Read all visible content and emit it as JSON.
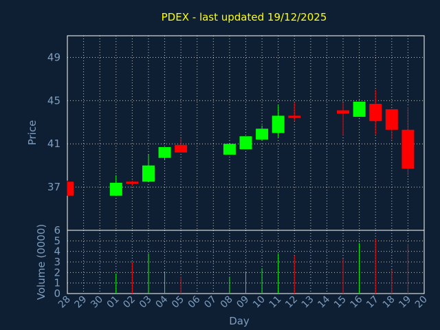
{
  "title": "PDEX - last updated 19/12/2025",
  "colors": {
    "background": "#0f1f33",
    "up": "#00ff00",
    "down": "#ff0000",
    "title": "#ffff00",
    "axis_text": "#7d9ec0",
    "grid": "#ffffff"
  },
  "chart_data": [
    {
      "type": "candlestick",
      "ylabel": "Price",
      "ylim": [
        33,
        51
      ],
      "yticks": [
        37,
        41,
        45,
        49
      ],
      "grid": true,
      "candles": [
        {
          "day": "28",
          "open": 37.5,
          "high": 37.6,
          "low": 36.2,
          "close": 36.2
        },
        {
          "day": "01",
          "open": 36.2,
          "high": 38.1,
          "low": 36.2,
          "close": 37.4
        },
        {
          "day": "02",
          "open": 37.5,
          "high": 37.6,
          "low": 37.1,
          "close": 37.4
        },
        {
          "day": "03",
          "open": 37.5,
          "high": 40.0,
          "low": 37.5,
          "close": 39.0
        },
        {
          "day": "04",
          "open": 39.7,
          "high": 40.7,
          "low": 39.5,
          "close": 40.7
        },
        {
          "day": "05",
          "open": 40.9,
          "high": 41.5,
          "low": 40.2,
          "close": 40.2
        },
        {
          "day": "08",
          "open": 40.0,
          "high": 41.0,
          "low": 40.0,
          "close": 41.0
        },
        {
          "day": "09",
          "open": 40.5,
          "high": 41.7,
          "low": 40.5,
          "close": 41.7
        },
        {
          "day": "10",
          "open": 41.4,
          "high": 42.7,
          "low": 41.3,
          "close": 42.4
        },
        {
          "day": "11",
          "open": 42.0,
          "high": 44.6,
          "low": 41.6,
          "close": 43.6
        },
        {
          "day": "12",
          "open": 43.6,
          "high": 44.8,
          "low": 43.1,
          "close": 43.4
        },
        {
          "day": "15",
          "open": 44.1,
          "high": 44.8,
          "low": 41.8,
          "close": 43.8
        },
        {
          "day": "16",
          "open": 43.5,
          "high": 44.9,
          "low": 43.5,
          "close": 44.9
        },
        {
          "day": "17",
          "open": 44.7,
          "high": 46.0,
          "low": 41.9,
          "close": 43.1
        },
        {
          "day": "18",
          "open": 44.2,
          "high": 44.2,
          "low": 41.4,
          "close": 42.3
        },
        {
          "day": "19",
          "open": 42.3,
          "high": 44.4,
          "low": 38.1,
          "close": 38.7
        }
      ]
    },
    {
      "type": "bar",
      "ylabel": "Volume (0000)",
      "ylim": [
        0,
        6
      ],
      "yticks": [
        0,
        1,
        2,
        3,
        4,
        5,
        6
      ],
      "grid": true,
      "series": [
        {
          "values": [
            {
              "day": "01",
              "value": 1.9,
              "dir": "up"
            },
            {
              "day": "02",
              "value": 3.0,
              "dir": "down"
            },
            {
              "day": "03",
              "value": 3.8,
              "dir": "up"
            },
            {
              "day": "04",
              "value": 2.1,
              "dir": "up"
            },
            {
              "day": "05",
              "value": 1.6,
              "dir": "down"
            },
            {
              "day": "08",
              "value": 1.6,
              "dir": "up"
            },
            {
              "day": "09",
              "value": 2.1,
              "dir": "up"
            },
            {
              "day": "10",
              "value": 2.4,
              "dir": "up"
            },
            {
              "day": "11",
              "value": 3.8,
              "dir": "up"
            },
            {
              "day": "12",
              "value": 3.6,
              "dir": "down"
            },
            {
              "day": "15",
              "value": 3.3,
              "dir": "down"
            },
            {
              "day": "16",
              "value": 4.8,
              "dir": "up"
            },
            {
              "day": "17",
              "value": 5.2,
              "dir": "down"
            },
            {
              "day": "18",
              "value": 2.3,
              "dir": "down"
            },
            {
              "day": "19",
              "value": 4.7,
              "dir": "down"
            }
          ]
        }
      ],
      "xlabel": "Day",
      "categories": [
        "28",
        "29",
        "30",
        "01",
        "02",
        "03",
        "04",
        "05",
        "06",
        "07",
        "08",
        "09",
        "10",
        "11",
        "12",
        "13",
        "14",
        "15",
        "16",
        "17",
        "18",
        "19",
        "20"
      ]
    }
  ]
}
